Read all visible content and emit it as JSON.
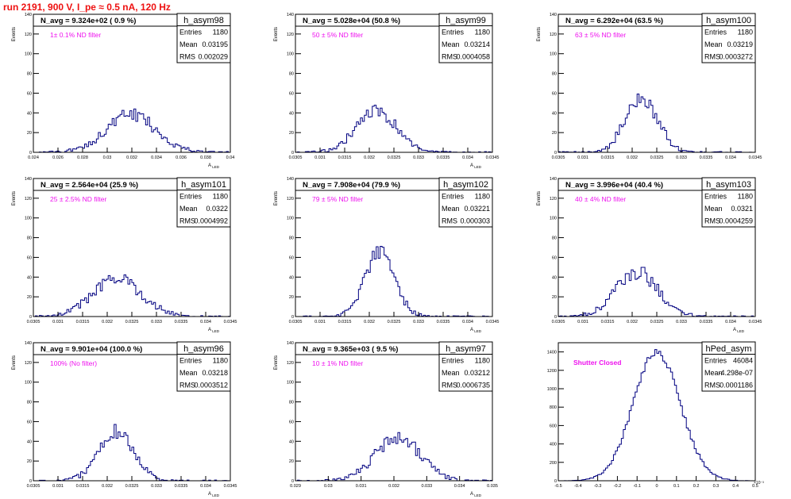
{
  "figure": {
    "run_title": "run 2191,   900 V, I_pe ≈ 0.5 nA, 120 Hz",
    "colors": {
      "title": "#ee1111",
      "histogram": "#000080",
      "note": "#ee11ee",
      "frame": "#000000"
    }
  },
  "stats_labels": {
    "entries": "Entries",
    "mean": "Mean",
    "rms": "RMS"
  },
  "chart_data": [
    {
      "type": "bar",
      "name": "h_asym98",
      "title": "N_avg = 9.324e+02 ( 0.9 %)",
      "note": "1± 0.1% ND filter",
      "ylabel": "Events",
      "xlabel": "A_LED",
      "entries": "1180",
      "mean": "0.03195",
      "rms": "0.002029",
      "xlim": [
        0.024,
        0.04
      ],
      "ylim": [
        0,
        140
      ],
      "xticks": [
        "0.024",
        "0.026",
        "0.028",
        "0.03",
        "0.032",
        "0.034",
        "0.036",
        "0.038",
        "0.04"
      ],
      "yticks": [
        "0",
        "20",
        "40",
        "60",
        "80",
        "100",
        "120",
        "140"
      ],
      "bins": {
        "mean": 0.03195,
        "sigma": 0.00203,
        "peak": 38,
        "nbins": 100
      }
    },
    {
      "type": "bar",
      "name": "h_asym99",
      "title": "N_avg = 5.028e+04 (50.8 %)",
      "note": "50 ± 5% ND filter",
      "ylabel": "Events",
      "xlabel": "A_LED",
      "entries": "1180",
      "mean": "0.03214",
      "rms": "0.0004058",
      "xlim": [
        0.0305,
        0.0345
      ],
      "ylim": [
        0,
        140
      ],
      "xticks": [
        "0.0305",
        "0.031",
        "0.0315",
        "0.032",
        "0.0325",
        "0.033",
        "0.0335",
        "0.034",
        "0.0345"
      ],
      "yticks": [
        "0",
        "20",
        "40",
        "60",
        "80",
        "100",
        "120",
        "140"
      ],
      "bins": {
        "mean": 0.03214,
        "sigma": 0.000406,
        "peak": 42,
        "nbins": 100
      }
    },
    {
      "type": "bar",
      "name": "h_asym100",
      "title": "N_avg = 6.292e+04 (63.5 %)",
      "note": "63 ± 5% ND filter",
      "ylabel": "Events",
      "xlabel": "",
      "entries": "1180",
      "mean": "0.03219",
      "rms": "0.0003272",
      "xlim": [
        0.0305,
        0.0345
      ],
      "ylim": [
        0,
        140
      ],
      "xticks": [
        "0.0305",
        "0.031",
        "0.0315",
        "0.032",
        "0.0325",
        "0.033",
        "0.0335",
        "0.034",
        "0.0345"
      ],
      "yticks": [
        "0",
        "20",
        "40",
        "60",
        "80",
        "100",
        "120",
        "140"
      ],
      "bins": {
        "mean": 0.03219,
        "sigma": 0.000327,
        "peak": 55,
        "nbins": 100
      }
    },
    {
      "type": "bar",
      "name": "h_asym101",
      "title": "N_avg = 2.564e+04 (25.9 %)",
      "note": "25 ± 2.5% ND filter",
      "ylabel": "Events",
      "xlabel": "A_LED",
      "entries": "1180",
      "mean": "0.0322",
      "rms": "0.0004992",
      "xlim": [
        0.0305,
        0.0345
      ],
      "ylim": [
        0,
        140
      ],
      "xticks": [
        "0.0305",
        "0.031",
        "0.0315",
        "0.032",
        "0.0325",
        "0.033",
        "0.0335",
        "0.034",
        "0.0345"
      ],
      "yticks": [
        "0",
        "20",
        "40",
        "60",
        "80",
        "100",
        "120",
        "140"
      ],
      "bins": {
        "mean": 0.0322,
        "sigma": 0.000499,
        "peak": 38,
        "nbins": 100
      }
    },
    {
      "type": "bar",
      "name": "h_asym102",
      "title": "N_avg = 7.908e+04 (79.9 %)",
      "note": "79 ± 5% ND filter",
      "ylabel": "Events",
      "xlabel": "A_LED",
      "entries": "1180",
      "mean": "0.03221",
      "rms": "0.000303",
      "xlim": [
        0.0305,
        0.0345
      ],
      "ylim": [
        0,
        140
      ],
      "xticks": [
        "0.0305",
        "0.031",
        "0.0315",
        "0.032",
        "0.0325",
        "0.033",
        "0.0335",
        "0.034",
        "0.0345"
      ],
      "yticks": [
        "0",
        "20",
        "40",
        "60",
        "80",
        "100",
        "120",
        "140"
      ],
      "bins": {
        "mean": 0.03221,
        "sigma": 0.000303,
        "peak": 65,
        "nbins": 100
      }
    },
    {
      "type": "bar",
      "name": "h_asym103",
      "title": "N_avg = 3.996e+04 (40.4 %)",
      "note": "40 ± 4% ND filter",
      "ylabel": "Events",
      "xlabel": "A_LED",
      "entries": "1180",
      "mean": "0.0321",
      "rms": "0.0004259",
      "xlim": [
        0.0305,
        0.0345
      ],
      "ylim": [
        0,
        140
      ],
      "xticks": [
        "0.0305",
        "0.031",
        "0.0315",
        "0.032",
        "0.0325",
        "0.033",
        "0.0335",
        "0.034",
        "0.0345"
      ],
      "yticks": [
        "0",
        "20",
        "40",
        "60",
        "80",
        "100",
        "120",
        "140"
      ],
      "bins": {
        "mean": 0.0321,
        "sigma": 0.000426,
        "peak": 45,
        "nbins": 100
      }
    },
    {
      "type": "bar",
      "name": "h_asym96",
      "title": "N_avg = 9.901e+04 (100.0 %)",
      "note": "100% (No filter)",
      "ylabel": "Events",
      "xlabel": "A_LED",
      "entries": "1180",
      "mean": "0.03218",
      "rms": "0.0003512",
      "xlim": [
        0.0305,
        0.0345
      ],
      "ylim": [
        0,
        140
      ],
      "xticks": [
        "0.0305",
        "0.031",
        "0.0315",
        "0.032",
        "0.0325",
        "0.033",
        "0.0335",
        "0.034",
        "0.0345"
      ],
      "yticks": [
        "0",
        "20",
        "40",
        "60",
        "80",
        "100",
        "120",
        "140"
      ],
      "bins": {
        "mean": 0.03218,
        "sigma": 0.000351,
        "peak": 50,
        "nbins": 100
      }
    },
    {
      "type": "bar",
      "name": "h_asym97",
      "title": "N_avg = 9.365e+03 ( 9.5 %)",
      "note": "10 ± 1% ND filter",
      "ylabel": "Events",
      "xlabel": "A_LED",
      "entries": "1180",
      "mean": "0.03212",
      "rms": "0.0006735",
      "xlim": [
        0.029,
        0.035
      ],
      "ylim": [
        0,
        140
      ],
      "xticks": [
        "0.029",
        "0.03",
        "0.031",
        "0.032",
        "0.033",
        "0.034",
        "0.035"
      ],
      "yticks": [
        "0",
        "20",
        "40",
        "60",
        "80",
        "100",
        "120",
        "140"
      ],
      "bins": {
        "mean": 0.03212,
        "sigma": 0.000674,
        "peak": 45,
        "nbins": 100
      }
    },
    {
      "type": "bar",
      "name": "hPed_asym",
      "title": "",
      "note": "Shutter Closed",
      "ylabel": "",
      "xlabel": "",
      "entries": "46084",
      "mean": "-4.298e-07",
      "rms": "0.0001186",
      "xlim": [
        -0.5,
        0.5
      ],
      "ylim": [
        0,
        1500
      ],
      "xmult": "×10⁻³",
      "xticks": [
        "-0.5",
        "-0.4",
        "-0.3",
        "-0.2",
        "-0.1",
        "0",
        "0.1",
        "0.2",
        "0.3",
        "0.4",
        "0.5"
      ],
      "yticks": [
        "0",
        "200",
        "400",
        "600",
        "800",
        "1000",
        "1200",
        "1400"
      ],
      "bins": {
        "mean": 0.0,
        "sigma": 0.1186,
        "peak": 1400,
        "nbins": 100
      }
    }
  ]
}
